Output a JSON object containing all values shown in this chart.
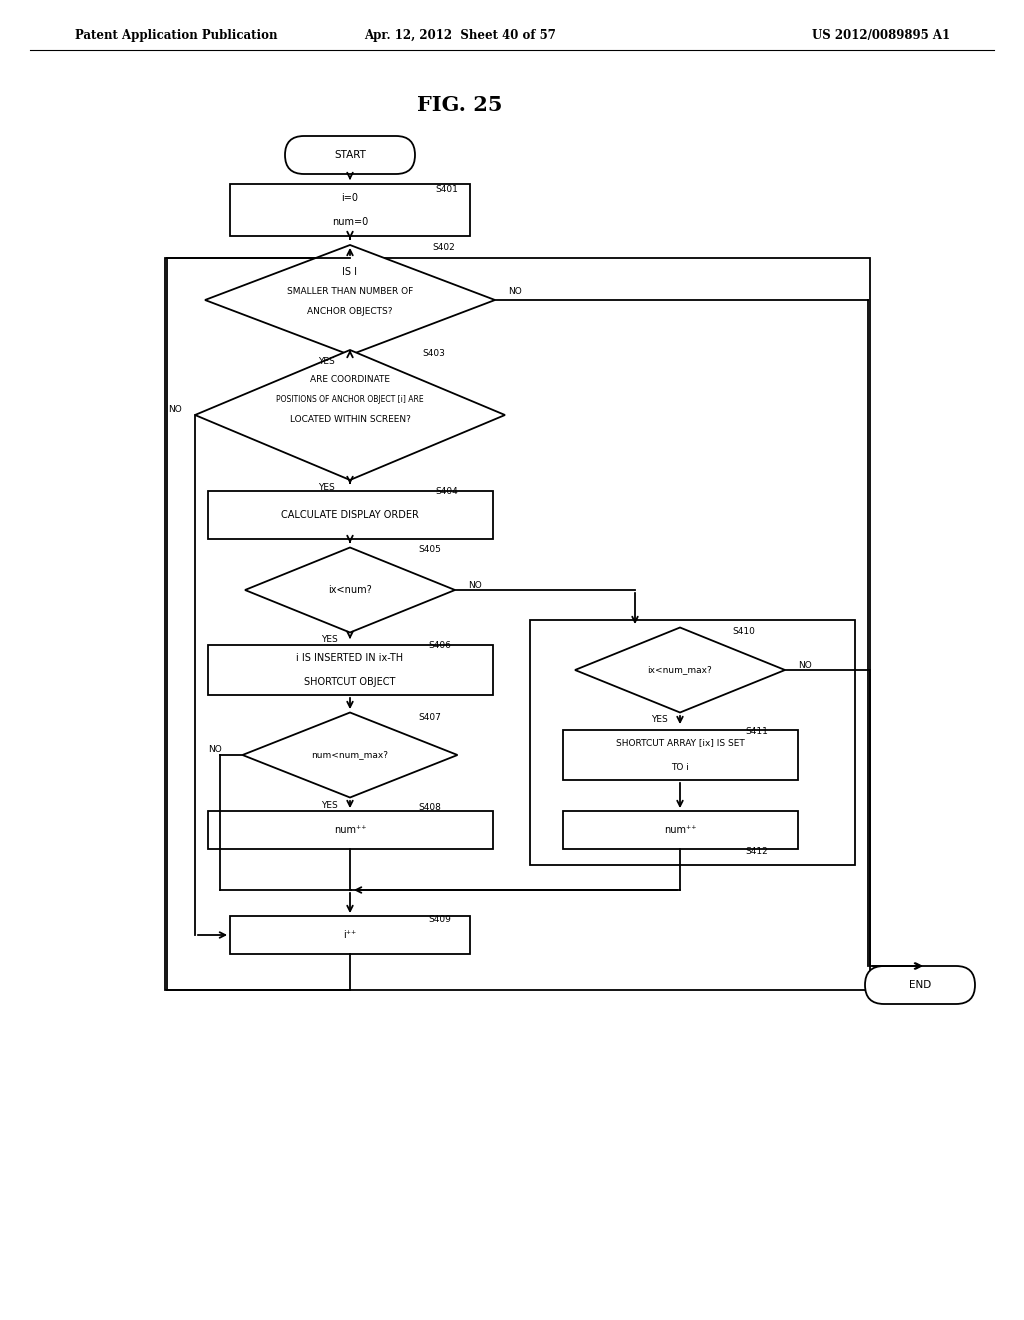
{
  "title": "FIG. 25",
  "header_left": "Patent Application Publication",
  "header_center": "Apr. 12, 2012  Sheet 40 of 57",
  "header_right": "US 2012/0089895 A1",
  "bg_color": "#ffffff",
  "line_color": "#000000",
  "font_size_header": 8.5,
  "font_size_title": 15,
  "font_size_node": 7.0,
  "font_size_label": 6.5
}
